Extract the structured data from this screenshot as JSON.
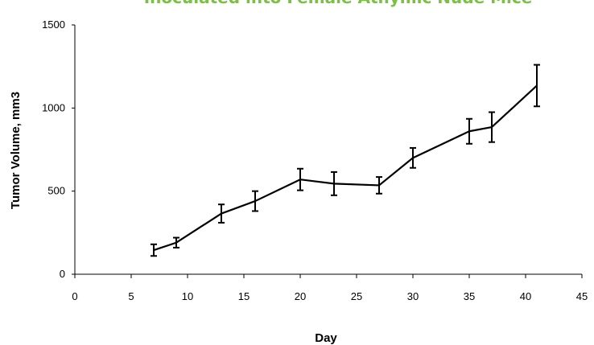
{
  "chart_data": {
    "type": "line",
    "title": "Inoculated into Female Athymic Nude Mice",
    "title_color": "#7ac143",
    "xlabel": "Day",
    "ylabel": "Tumor Volume, mm3",
    "xlim": [
      0,
      45
    ],
    "ylim": [
      0,
      1500
    ],
    "xticks": [
      "0",
      "5",
      "10",
      "15",
      "20",
      "25",
      "30",
      "35",
      "40",
      "45"
    ],
    "yticks": [
      "0",
      "500",
      "1000",
      "1500"
    ],
    "grid": false,
    "line_color": "#000000",
    "series": [
      {
        "x": [
          7,
          9,
          13,
          16,
          20,
          23,
          27,
          30,
          35,
          37,
          41
        ],
        "y": [
          145,
          190,
          365,
          440,
          570,
          545,
          535,
          700,
          860,
          885,
          1135
        ],
        "error": [
          35,
          30,
          55,
          60,
          65,
          70,
          50,
          60,
          75,
          90,
          125
        ]
      }
    ]
  }
}
